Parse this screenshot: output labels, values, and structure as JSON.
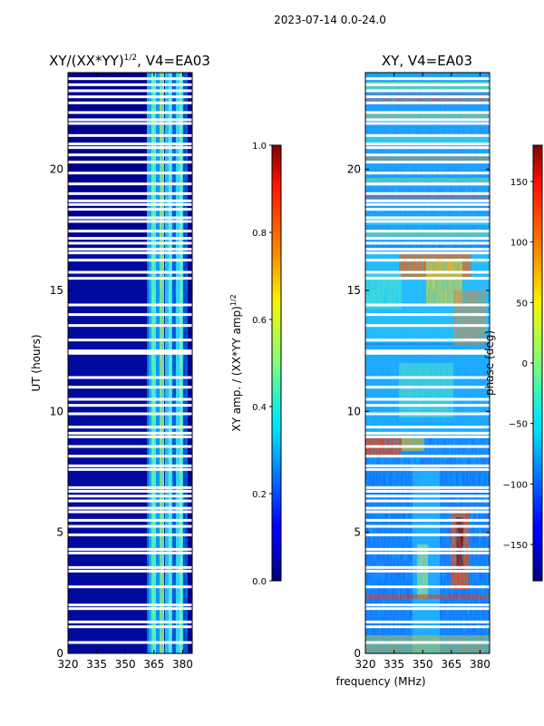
{
  "suptitle": "2023-07-14 0.0-24.0",
  "colors": {
    "background": "#00008f",
    "gap": "#ffffff"
  },
  "chart_data": [
    {
      "type": "heatmap",
      "title": "XY/(XX*YY)1/2, V4=EA03",
      "title_main": "XY/(XX*YY)",
      "title_exp": "1/2",
      "title_rest": ", V4=EA03",
      "xlabel": "",
      "ylabel": "UT (hours)",
      "xlim": [
        320,
        385
      ],
      "ylim": [
        0,
        24
      ],
      "xticks": [
        320,
        335,
        350,
        365,
        380
      ],
      "xtick_labels": [
        "320",
        "335",
        "350",
        "365",
        "380"
      ],
      "yticks": [
        0,
        5,
        10,
        15,
        20
      ],
      "ytick_labels": [
        "0",
        "5",
        "10",
        "15",
        "20"
      ],
      "colorbar": {
        "label": "XY amp. / (XX*YY amp)1/2",
        "label_main": "XY amp. / (XX*YY amp)",
        "label_exp": "1/2",
        "range": [
          0.0,
          1.0
        ],
        "ticks": [
          0.0,
          0.2,
          0.4,
          0.6,
          0.8,
          1.0
        ],
        "tick_labels": [
          "0.0",
          "0.2",
          "0.4",
          "0.6",
          "0.8",
          "1.0"
        ]
      }
    },
    {
      "type": "heatmap",
      "title": "XY, V4=EA03",
      "xlabel": "frequency (MHz)",
      "ylabel": "",
      "xlim": [
        320,
        385
      ],
      "ylim": [
        0,
        24
      ],
      "xticks": [
        320,
        335,
        350,
        365,
        380
      ],
      "xtick_labels": [
        "320",
        "335",
        "350",
        "365",
        "380"
      ],
      "yticks": [
        0,
        5,
        10,
        15,
        20
      ],
      "ytick_labels": [
        "0",
        "5",
        "10",
        "15",
        "20"
      ],
      "colorbar": {
        "label": "phase (deg)",
        "range": [
          -180,
          180
        ],
        "ticks": [
          -150,
          -100,
          -50,
          0,
          50,
          100,
          150
        ],
        "tick_labels": [
          "−150",
          "−100",
          "−50",
          "0",
          "50",
          "100",
          "150"
        ]
      }
    }
  ],
  "gap_times_ut": [
    0.45,
    1.1,
    1.3,
    1.85,
    2.0,
    2.75,
    3.4,
    3.55,
    4.15,
    4.3,
    4.9,
    5.25,
    5.5,
    5.85,
    6.0,
    6.3,
    6.5,
    6.7,
    6.85,
    7.6,
    7.75,
    8.15,
    8.55,
    8.95,
    9.1,
    9.35,
    9.9,
    10.25,
    10.5,
    11.0,
    11.4,
    12.4,
    12.5,
    12.95,
    13.55,
    14.0,
    14.4,
    15.5,
    15.75,
    16.25,
    16.55,
    16.7,
    16.95,
    17.15,
    17.45,
    17.85,
    18.0,
    18.35,
    18.55,
    18.7,
    19.0,
    19.4,
    19.85,
    20.3,
    20.6,
    20.9,
    21.05,
    21.4,
    21.9,
    22.05,
    22.35,
    22.75,
    23.0,
    23.25,
    23.5,
    23.75
  ]
}
